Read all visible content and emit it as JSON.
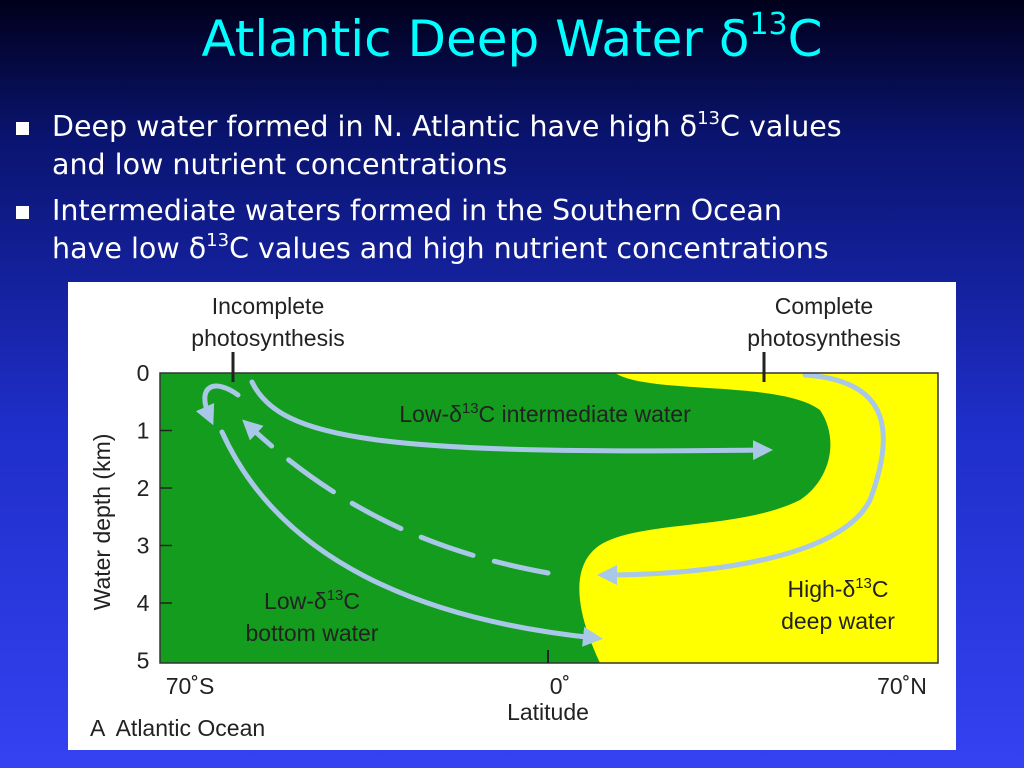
{
  "title": [
    "Atlantic Deep Water δ",
    "13",
    "C"
  ],
  "bullets": [
    {
      "lines": [
        [
          "Deep water formed in N. Atlantic have high δ",
          "13",
          "C values"
        ],
        [
          "and low nutrient concentrations"
        ]
      ]
    },
    {
      "lines": [
        [
          "Intermediate waters formed in the Southern Ocean"
        ],
        [
          "have low δ",
          "13",
          "C values and high nutrient concentrations"
        ]
      ]
    }
  ],
  "figure": {
    "top_left_label": [
      "Incomplete",
      "photosynthesis"
    ],
    "top_right_label": [
      "Complete",
      "photosynthesis"
    ],
    "y_axis_label": "Water depth (km)",
    "y_ticks": [
      "0",
      "1",
      "2",
      "3",
      "4",
      "5"
    ],
    "x_ticks": [
      "70˚S",
      "0˚",
      "70˚N"
    ],
    "x_axis_label": "Latitude",
    "caption": "A  Atlantic Ocean",
    "intermediate_label": [
      "Low-δ",
      "13",
      "C intermediate water"
    ],
    "bottom_label": [
      [
        "Low-δ",
        "13",
        "C"
      ],
      [
        "bottom water"
      ]
    ],
    "deep_label": [
      [
        "High-δ",
        "13",
        "C"
      ],
      [
        "deep water"
      ]
    ]
  }
}
